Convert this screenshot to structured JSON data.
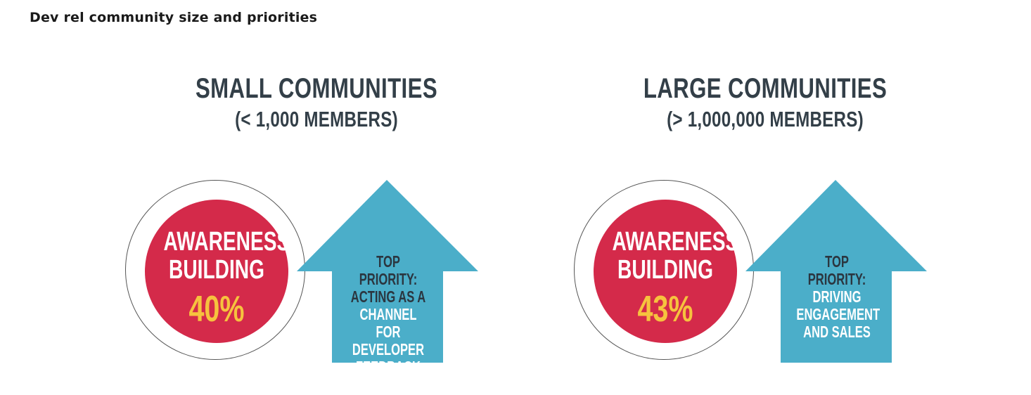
{
  "title": "Dev rel community size and priorities",
  "colors": {
    "circle_fill": "#d42a4a",
    "percent_text": "#f6c23e",
    "arrow_fill": "#4baec9",
    "heading_text": "#333f48"
  },
  "panels": [
    {
      "heading": "SMALL COMMUNITIES",
      "subheading": "(< 1,000 MEMBERS)",
      "circle": {
        "label_line1": "AWARENESS",
        "label_line2": "BUILDING",
        "percent": "40%"
      },
      "arrow": {
        "priority_label": "TOP PRIORITY:",
        "lines": [
          "ACTING AS A",
          "CHANNEL FOR",
          "DEVELOPER",
          "FEEDBACK"
        ]
      }
    },
    {
      "heading": "LARGE COMMUNITIES",
      "subheading": "(> 1,000,000 MEMBERS)",
      "circle": {
        "label_line1": "AWARENESS",
        "label_line2": "BUILDING",
        "percent": "43%"
      },
      "arrow": {
        "priority_label": "TOP PRIORITY:",
        "lines": [
          "DRIVING",
          "ENGAGEMENT",
          "AND SALES"
        ]
      }
    }
  ]
}
